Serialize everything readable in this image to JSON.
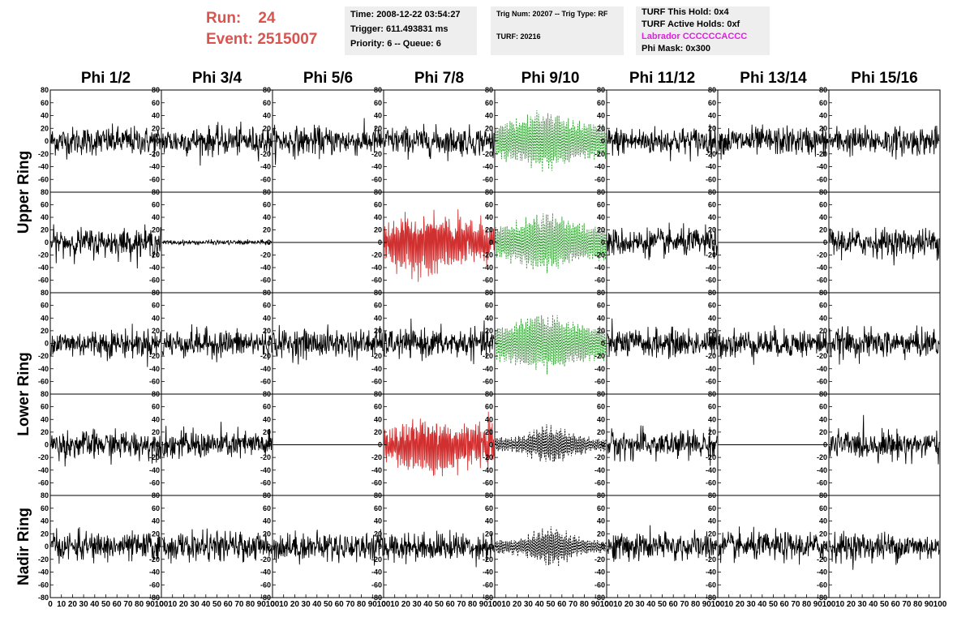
{
  "header": {
    "run_label": "Run:",
    "run_value": "24",
    "event_label": "Event:",
    "event_value": "2515007"
  },
  "info_box_1": {
    "time": "Time: 2008-12-22 03:54:27",
    "trigger": "Trigger: 611.493831 ms",
    "priority": "Priority: 6 -- Queue: 6"
  },
  "info_box_2": {
    "trig": "Trig Num: 20207 -- Trig Type: RF",
    "turf": "TURF: 20216"
  },
  "info_box_3": {
    "this_hold": "TURF This Hold: 0x4",
    "active_holds": "TURF Active Holds: 0xf",
    "labrador": "Labrador CCCCCCACCC",
    "phi_mask": "Phi Mask: 0x300",
    "labrador_color": "#e020e0"
  },
  "chart_data": {
    "type": "line",
    "columns": [
      "Phi 1/2",
      "Phi 3/4",
      "Phi 5/6",
      "Phi 7/8",
      "Phi 9/10",
      "Phi 11/12",
      "Phi 13/14",
      "Phi 15/16"
    ],
    "ring_labels": [
      "Upper Ring",
      "Lower Ring",
      "Nadir Ring"
    ],
    "ylim": [
      -80,
      80
    ],
    "xlim": [
      0,
      100
    ],
    "y_ticks": [
      "80",
      "60",
      "40",
      "20",
      "0",
      "-20",
      "-40",
      "-60",
      "-80"
    ],
    "x_ticks": [
      "0",
      "10",
      "20",
      "30",
      "40",
      "50",
      "60",
      "70",
      "80",
      "90",
      "100"
    ],
    "grid": false,
    "colors": {
      "default": "#000000",
      "triggered": "#d03030",
      "masked": "#2a9a2a",
      "dashed_black": "#000000"
    },
    "panels": [
      [
        "normal",
        "normal",
        "normal",
        "normal",
        "green",
        "normal",
        "normal",
        "normal"
      ],
      [
        "normal",
        "flatnoise",
        "flat",
        "red",
        "green",
        "normal",
        "flat",
        "normal"
      ],
      [
        "normal",
        "normal",
        "normal",
        "normal",
        "green",
        "normal",
        "normal",
        "normal"
      ],
      [
        "normal",
        "normal",
        "flat",
        "red",
        "dashblack",
        "normal",
        "flat",
        "normal"
      ],
      [
        "normal",
        "normal",
        "normal",
        "normal",
        "dashblack",
        "normal",
        "normal",
        "normal"
      ]
    ]
  }
}
